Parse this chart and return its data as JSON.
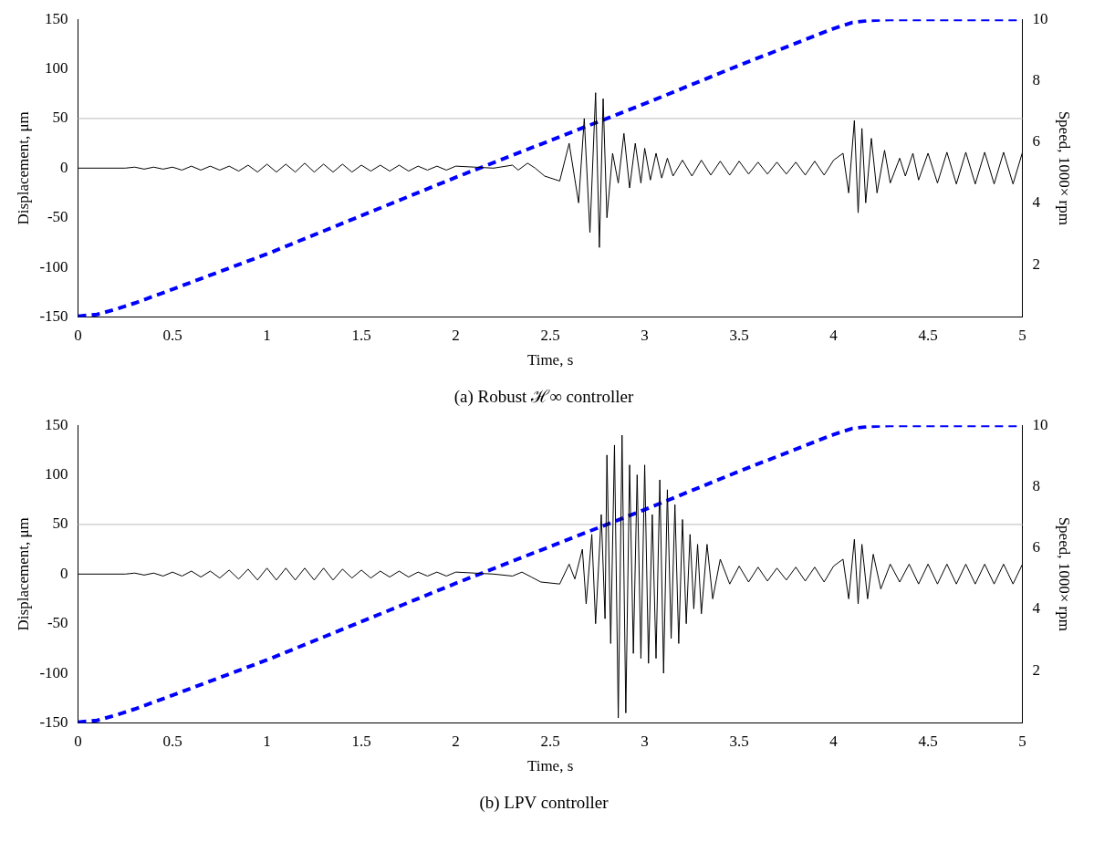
{
  "chart_data": [
    {
      "type": "line",
      "title": "(a) Robust ℋ∞ controller",
      "xlabel": "Time, s",
      "ylabel": "Displacement, μm",
      "y2label": "Speed, 1000× rpm",
      "xlim": [
        0,
        5
      ],
      "xticks": [
        0,
        0.5,
        1,
        1.5,
        2,
        2.5,
        3,
        3.5,
        4,
        4.5,
        5
      ],
      "ylim": [
        -150,
        150
      ],
      "yticks": [
        -150,
        -100,
        -50,
        0,
        50,
        100,
        150
      ],
      "y2lim": [
        0.3,
        10
      ],
      "y2ticks": [
        2,
        4,
        6,
        8,
        10
      ],
      "grid": false,
      "legend": false,
      "marker": "none",
      "ref_lines": [
        {
          "axis": "y",
          "value": 50,
          "color": "#c8c8c8"
        }
      ],
      "series": [
        {
          "color": "#000000",
          "line_style": "solid",
          "x": [
            0,
            0.25,
            0.3,
            0.35,
            0.4,
            0.45,
            0.5,
            0.55,
            0.6,
            0.65,
            0.7,
            0.75,
            0.8,
            0.85,
            0.9,
            0.95,
            1.0,
            1.05,
            1.1,
            1.15,
            1.2,
            1.25,
            1.3,
            1.35,
            1.4,
            1.45,
            1.5,
            1.55,
            1.6,
            1.65,
            1.7,
            1.75,
            1.8,
            1.85,
            1.9,
            1.95,
            2.0,
            2.1,
            2.2,
            2.3,
            2.33,
            2.38,
            2.42,
            2.47,
            2.55,
            2.6,
            2.65,
            2.68,
            2.71,
            2.74,
            2.76,
            2.78,
            2.8,
            2.83,
            2.86,
            2.89,
            2.92,
            2.95,
            2.98,
            3.0,
            3.03,
            3.06,
            3.09,
            3.12,
            3.15,
            3.2,
            3.25,
            3.3,
            3.35,
            3.4,
            3.45,
            3.5,
            3.55,
            3.6,
            3.65,
            3.7,
            3.75,
            3.8,
            3.85,
            3.9,
            3.95,
            4.0,
            4.05,
            4.08,
            4.11,
            4.13,
            4.15,
            4.17,
            4.2,
            4.23,
            4.27,
            4.3,
            4.35,
            4.38,
            4.42,
            4.45,
            4.5,
            4.55,
            4.6,
            4.65,
            4.7,
            4.75,
            4.8,
            4.85,
            4.9,
            4.95,
            5.0
          ],
          "values": [
            0,
            0,
            1,
            -1,
            1,
            -1,
            1,
            -2,
            2,
            -2,
            2,
            -2,
            2,
            -3,
            3,
            -4,
            4,
            -4,
            4,
            -4,
            5,
            -4,
            4,
            -4,
            4,
            -4,
            3,
            -3,
            3,
            -3,
            3,
            -3,
            2,
            -2,
            2,
            -2,
            2,
            1,
            0,
            3,
            -2,
            5,
            0,
            -8,
            -13,
            25,
            -35,
            50,
            -65,
            76,
            -80,
            70,
            -50,
            15,
            -15,
            35,
            -20,
            25,
            -15,
            20,
            -12,
            15,
            -10,
            10,
            -8,
            8,
            -8,
            8,
            -7,
            7,
            -7,
            7,
            -6,
            6,
            -6,
            6,
            -6,
            6,
            -7,
            7,
            -7,
            8,
            15,
            -25,
            48,
            -45,
            40,
            -35,
            30,
            -25,
            18,
            -15,
            10,
            -8,
            15,
            -12,
            15,
            -15,
            16,
            -16,
            16,
            -16,
            16,
            -16,
            16,
            -16,
            16
          ]
        },
        {
          "color": "#0000ff",
          "line_style": "dashed",
          "axis": "y2",
          "x": [
            0,
            0.1,
            0.2,
            0.3,
            0.5,
            1,
            1.5,
            2,
            2.5,
            3,
            3.5,
            4,
            4.1,
            4.2,
            4.3,
            5
          ],
          "values": [
            0.32,
            0.38,
            0.55,
            0.75,
            1.2,
            2.35,
            3.6,
            4.85,
            6.05,
            7.25,
            8.5,
            9.7,
            9.9,
            9.97,
            10,
            10
          ]
        }
      ]
    },
    {
      "type": "line",
      "title": "(b) LPV controller",
      "xlabel": "Time, s",
      "ylabel": "Displacement, μm",
      "y2label": "Speed, 1000× rpm",
      "xlim": [
        0,
        5
      ],
      "xticks": [
        0,
        0.5,
        1,
        1.5,
        2,
        2.5,
        3,
        3.5,
        4,
        4.5,
        5
      ],
      "ylim": [
        -150,
        150
      ],
      "yticks": [
        -150,
        -100,
        -50,
        0,
        50,
        100,
        150
      ],
      "y2lim": [
        0.3,
        10
      ],
      "y2ticks": [
        2,
        4,
        6,
        8,
        10
      ],
      "grid": false,
      "legend": false,
      "marker": "none",
      "ref_lines": [
        {
          "axis": "y",
          "value": 50,
          "color": "#c8c8c8"
        }
      ],
      "series": [
        {
          "color": "#000000",
          "line_style": "solid",
          "x": [
            0,
            0.25,
            0.3,
            0.35,
            0.4,
            0.45,
            0.5,
            0.55,
            0.6,
            0.65,
            0.7,
            0.75,
            0.8,
            0.85,
            0.9,
            0.95,
            1.0,
            1.05,
            1.1,
            1.15,
            1.2,
            1.25,
            1.3,
            1.35,
            1.4,
            1.45,
            1.5,
            1.55,
            1.6,
            1.65,
            1.7,
            1.75,
            1.8,
            1.85,
            1.9,
            1.95,
            2.0,
            2.1,
            2.2,
            2.3,
            2.35,
            2.4,
            2.45,
            2.55,
            2.6,
            2.63,
            2.67,
            2.69,
            2.72,
            2.74,
            2.77,
            2.79,
            2.8,
            2.82,
            2.84,
            2.86,
            2.88,
            2.9,
            2.92,
            2.94,
            2.96,
            2.98,
            3.0,
            3.02,
            3.04,
            3.06,
            3.08,
            3.1,
            3.12,
            3.14,
            3.16,
            3.18,
            3.2,
            3.22,
            3.24,
            3.26,
            3.28,
            3.3,
            3.33,
            3.36,
            3.4,
            3.45,
            3.5,
            3.55,
            3.6,
            3.65,
            3.7,
            3.75,
            3.8,
            3.85,
            3.9,
            3.95,
            4.0,
            4.05,
            4.08,
            4.11,
            4.13,
            4.15,
            4.18,
            4.21,
            4.25,
            4.3,
            4.35,
            4.4,
            4.45,
            4.5,
            4.55,
            4.6,
            4.65,
            4.7,
            4.75,
            4.8,
            4.85,
            4.9,
            4.95,
            5.0
          ],
          "values": [
            0,
            0,
            1,
            -1,
            1,
            -2,
            2,
            -2,
            3,
            -3,
            3,
            -4,
            4,
            -5,
            5,
            -6,
            6,
            -6,
            6,
            -6,
            6,
            -6,
            6,
            -6,
            5,
            -4,
            4,
            -4,
            3,
            -3,
            3,
            -3,
            2,
            -2,
            2,
            -2,
            2,
            1,
            0,
            -2,
            2,
            -3,
            -8,
            -10,
            10,
            -5,
            25,
            -30,
            40,
            -50,
            60,
            -45,
            120,
            -70,
            130,
            -145,
            140,
            -140,
            110,
            -80,
            100,
            -85,
            110,
            -90,
            60,
            -85,
            95,
            -100,
            85,
            -65,
            70,
            -70,
            55,
            -50,
            40,
            -35,
            30,
            -40,
            30,
            -25,
            15,
            -10,
            8,
            -8,
            7,
            -7,
            6,
            -6,
            7,
            -7,
            7,
            -8,
            8,
            15,
            -25,
            35,
            -30,
            30,
            -25,
            20,
            -15,
            10,
            -8,
            10,
            -10,
            10,
            -10,
            10,
            -10,
            10,
            -10,
            10,
            -10,
            10,
            -10,
            10
          ]
        },
        {
          "color": "#0000ff",
          "line_style": "dashed",
          "axis": "y2",
          "x": [
            0,
            0.1,
            0.2,
            0.3,
            0.5,
            1,
            1.5,
            2,
            2.5,
            3,
            3.5,
            4,
            4.1,
            4.2,
            4.3,
            5
          ],
          "values": [
            0.32,
            0.38,
            0.55,
            0.75,
            1.2,
            2.35,
            3.6,
            4.85,
            6.05,
            7.25,
            8.5,
            9.7,
            9.9,
            9.97,
            10,
            10
          ]
        }
      ]
    }
  ]
}
